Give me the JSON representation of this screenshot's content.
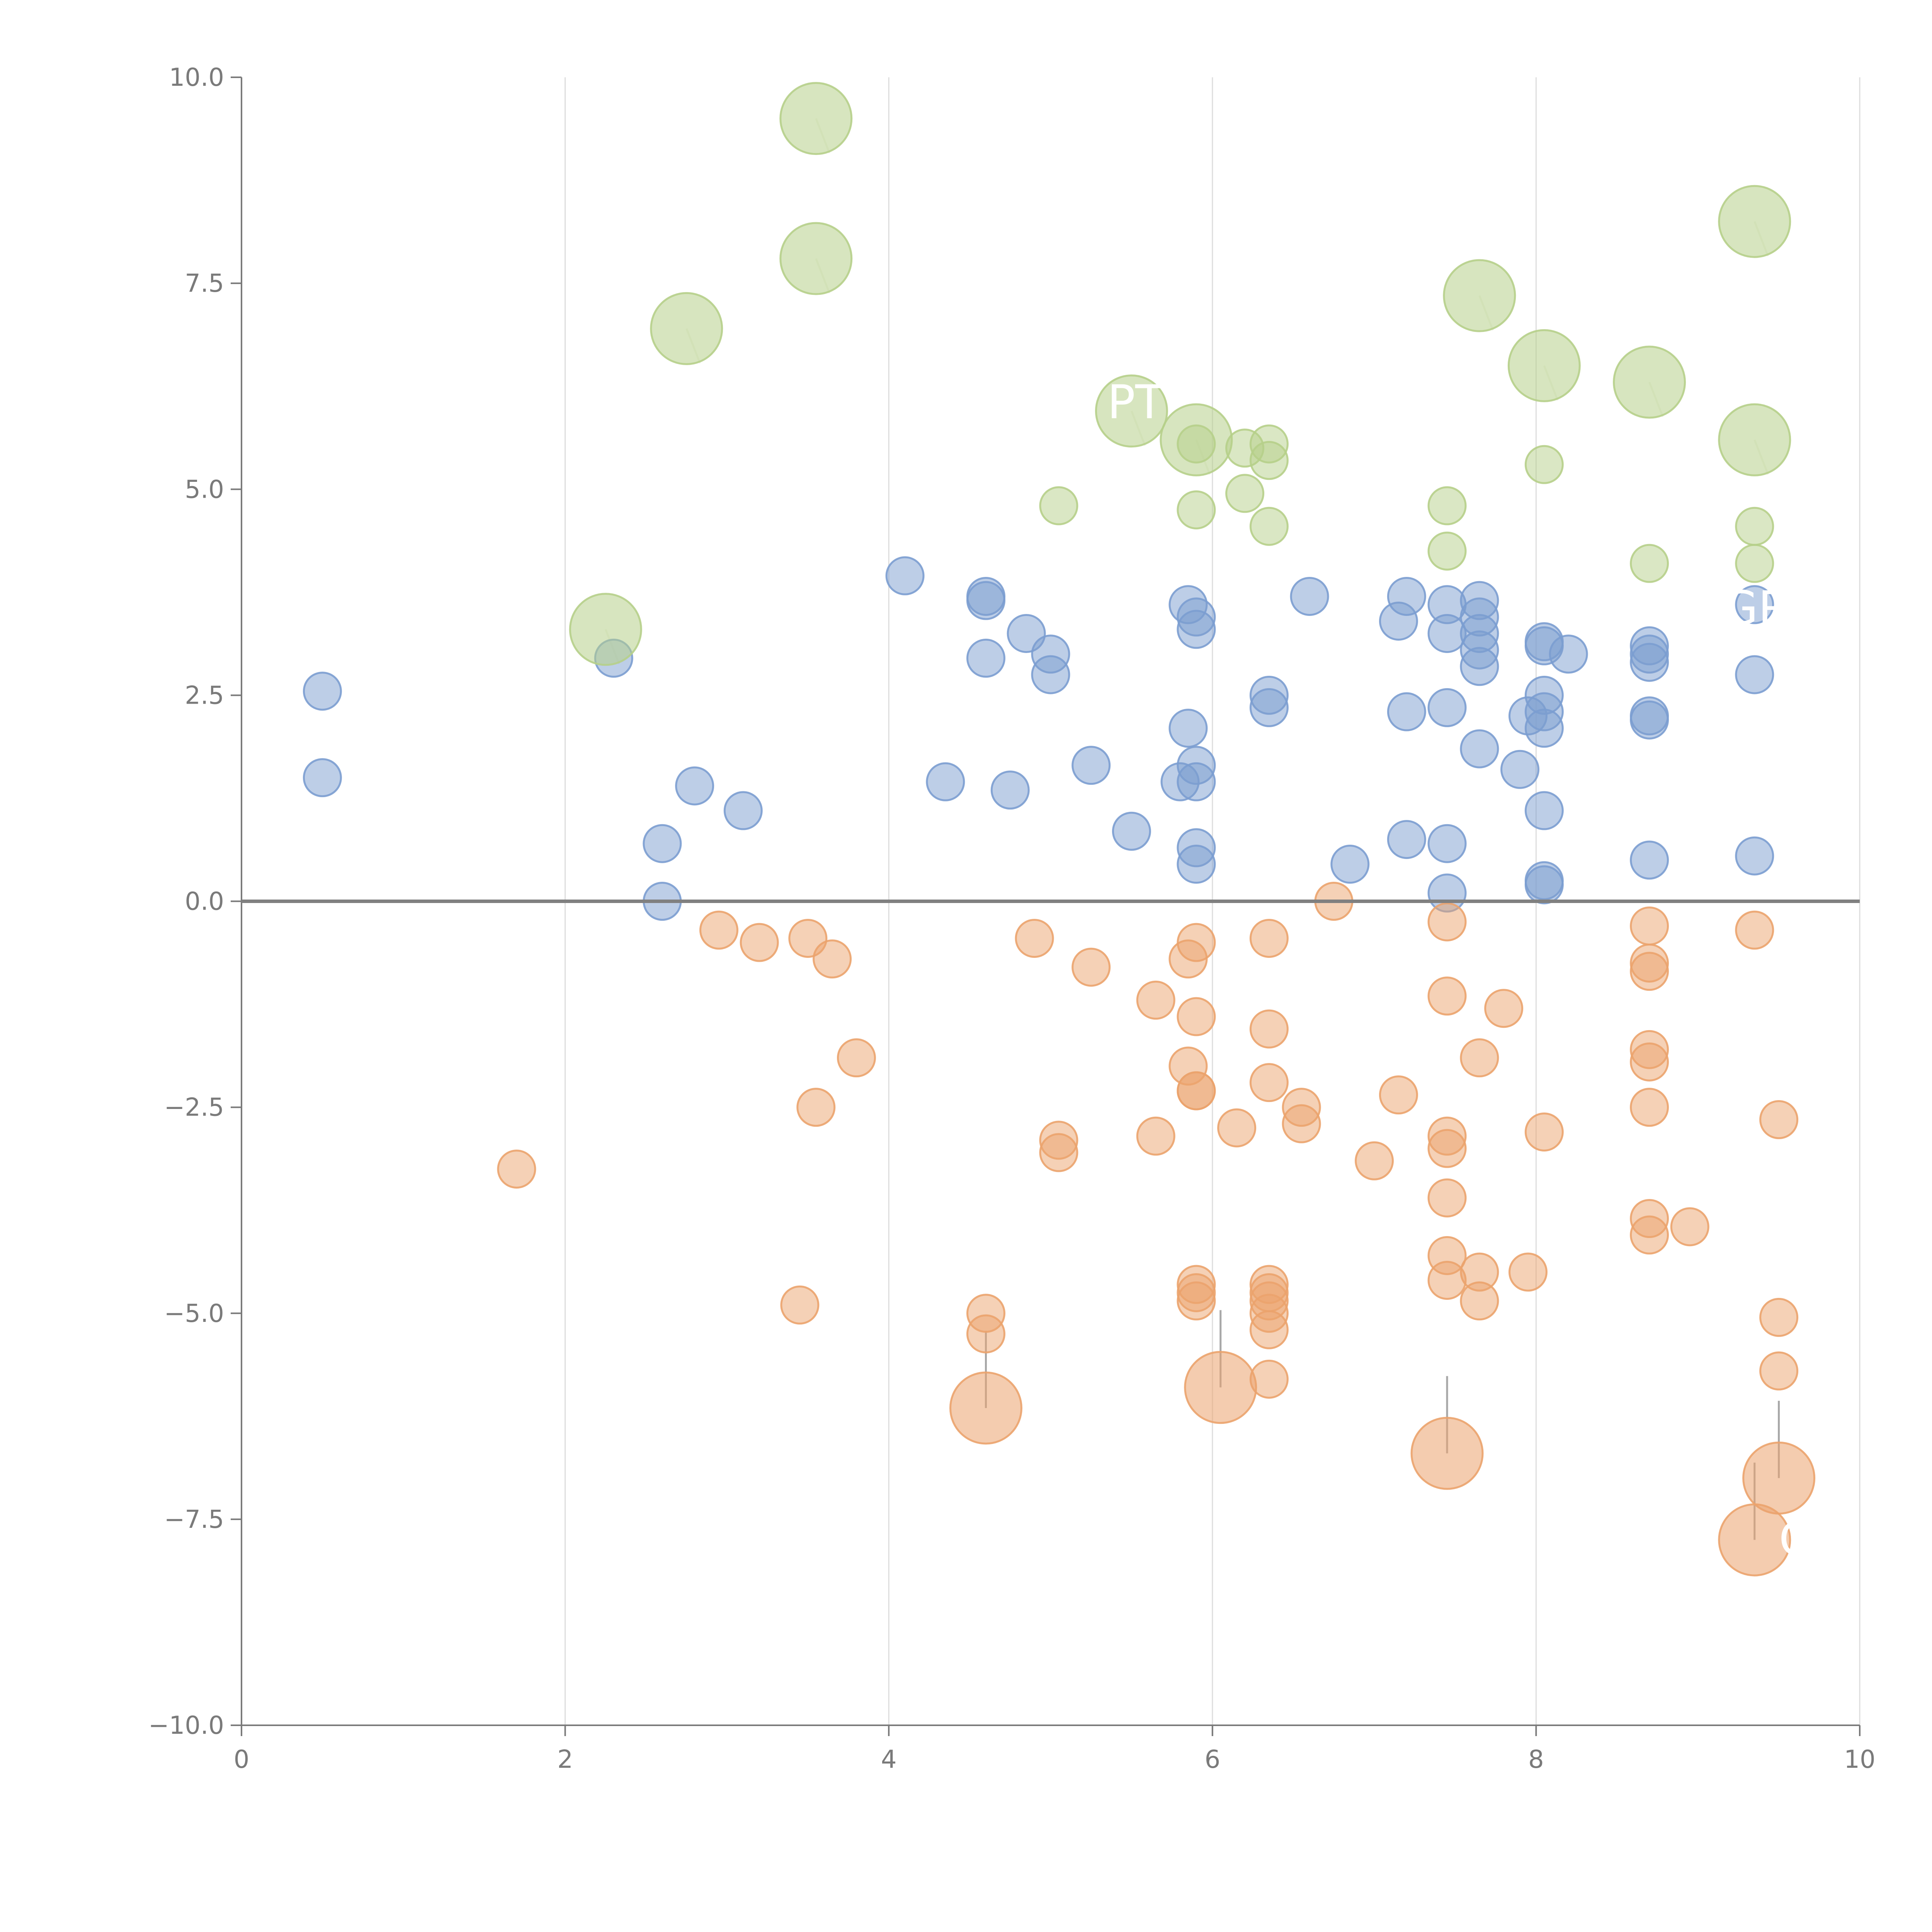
{
  "chart_data": {
    "type": "scatter",
    "title": "",
    "xlabel": "",
    "ylabel": "",
    "xlim": [
      0,
      10
    ],
    "ylim": [
      -10,
      10
    ],
    "grid": "vertical",
    "zero_line": 0,
    "x_ticks": [
      "0",
      "2",
      "4",
      "6",
      "8",
      "10"
    ],
    "y_ticks": [
      "10.0",
      "7.5",
      "5.0",
      "2.5",
      "0.0",
      "−2.5",
      "−5.0",
      "−7.5",
      "−10.0"
    ],
    "x_tick_values": [
      0,
      2,
      4,
      6,
      8,
      10
    ],
    "y_tick_values": [
      10,
      7.5,
      5,
      2.5,
      0,
      -2.5,
      -5,
      -7.5,
      -10
    ],
    "series": [
      {
        "name": "blue",
        "color": "#7b9dd0",
        "points": [
          [
            0.5,
            2.55
          ],
          [
            0.5,
            1.5
          ],
          [
            2.3,
            2.95
          ],
          [
            2.6,
            0.7
          ],
          [
            2.6,
            0.0
          ],
          [
            2.8,
            1.4
          ],
          [
            3.1,
            1.1
          ],
          [
            4.1,
            3.95
          ],
          [
            4.35,
            1.45
          ],
          [
            4.6,
            3.7
          ],
          [
            4.6,
            3.65
          ],
          [
            4.6,
            2.95
          ],
          [
            4.75,
            1.35
          ],
          [
            4.85,
            3.25
          ],
          [
            5.0,
            3.0
          ],
          [
            5.0,
            2.75
          ],
          [
            5.25,
            1.65
          ],
          [
            5.5,
            0.85
          ],
          [
            5.85,
            3.6
          ],
          [
            5.85,
            2.1
          ],
          [
            5.8,
            1.45
          ],
          [
            5.9,
            3.45
          ],
          [
            5.9,
            3.3
          ],
          [
            5.9,
            1.65
          ],
          [
            5.9,
            1.45
          ],
          [
            5.9,
            0.65
          ],
          [
            5.9,
            0.45
          ],
          [
            6.35,
            2.5
          ],
          [
            6.35,
            2.35
          ],
          [
            6.6,
            3.7
          ],
          [
            6.85,
            0.45
          ],
          [
            7.15,
            3.4
          ],
          [
            7.2,
            3.7
          ],
          [
            7.2,
            2.3
          ],
          [
            7.2,
            0.75
          ],
          [
            7.45,
            3.6
          ],
          [
            7.45,
            3.25
          ],
          [
            7.45,
            2.35
          ],
          [
            7.45,
            0.7
          ],
          [
            7.45,
            0.1
          ],
          [
            7.65,
            3.65
          ],
          [
            7.65,
            3.45
          ],
          [
            7.65,
            3.25
          ],
          [
            7.65,
            3.05
          ],
          [
            7.65,
            2.85
          ],
          [
            7.65,
            1.85
          ],
          [
            7.9,
            1.6
          ],
          [
            7.95,
            2.25
          ],
          [
            8.05,
            3.15
          ],
          [
            8.05,
            3.1
          ],
          [
            8.05,
            2.5
          ],
          [
            8.05,
            2.3
          ],
          [
            8.05,
            2.1
          ],
          [
            8.05,
            1.1
          ],
          [
            8.05,
            0.25
          ],
          [
            8.05,
            0.2
          ],
          [
            8.2,
            3.0
          ],
          [
            8.7,
            3.1
          ],
          [
            8.7,
            3.0
          ],
          [
            8.7,
            2.9
          ],
          [
            8.7,
            2.25
          ],
          [
            8.7,
            2.2
          ],
          [
            8.7,
            0.5
          ],
          [
            9.35,
            3.6
          ],
          [
            9.35,
            2.75
          ],
          [
            9.35,
            0.55
          ]
        ]
      },
      {
        "name": "orange",
        "color": "#eba36d",
        "points": [
          [
            1.7,
            -3.25
          ],
          [
            2.95,
            -0.35
          ],
          [
            3.2,
            -0.5
          ],
          [
            3.5,
            -0.45
          ],
          [
            3.65,
            -0.7
          ],
          [
            3.55,
            -2.5
          ],
          [
            3.8,
            -1.9
          ],
          [
            3.45,
            -4.9
          ],
          [
            4.6,
            -5.0
          ],
          [
            4.6,
            -5.25
          ],
          [
            4.9,
            -0.45
          ],
          [
            5.05,
            -2.9
          ],
          [
            5.05,
            -3.05
          ],
          [
            5.25,
            -0.8
          ],
          [
            5.65,
            -1.2
          ],
          [
            5.65,
            -2.85
          ],
          [
            5.85,
            -0.7
          ],
          [
            5.85,
            -2.0
          ],
          [
            5.9,
            -0.5
          ],
          [
            5.9,
            -1.4
          ],
          [
            5.9,
            -2.3
          ],
          [
            5.9,
            -2.3
          ],
          [
            5.9,
            -4.65
          ],
          [
            5.9,
            -4.75
          ],
          [
            5.9,
            -4.85
          ],
          [
            6.15,
            -2.75
          ],
          [
            6.35,
            -0.45
          ],
          [
            6.35,
            -1.55
          ],
          [
            6.35,
            -2.2
          ],
          [
            6.35,
            -4.65
          ],
          [
            6.35,
            -4.75
          ],
          [
            6.35,
            -4.85
          ],
          [
            6.35,
            -5.0
          ],
          [
            6.35,
            -5.2
          ],
          [
            6.35,
            -5.8
          ],
          [
            6.55,
            -2.5
          ],
          [
            6.55,
            -2.7
          ],
          [
            6.75,
            0.0
          ],
          [
            7.0,
            -3.15
          ],
          [
            7.15,
            -2.35
          ],
          [
            7.45,
            -0.25
          ],
          [
            7.45,
            -1.15
          ],
          [
            7.45,
            -2.85
          ],
          [
            7.45,
            -3.0
          ],
          [
            7.45,
            -3.6
          ],
          [
            7.45,
            -4.3
          ],
          [
            7.45,
            -4.6
          ],
          [
            7.65,
            -1.9
          ],
          [
            7.65,
            -4.5
          ],
          [
            7.65,
            -4.85
          ],
          [
            7.8,
            -1.3
          ],
          [
            7.95,
            -4.5
          ],
          [
            8.05,
            -2.8
          ],
          [
            8.7,
            -0.3
          ],
          [
            8.7,
            -0.75
          ],
          [
            8.7,
            -0.85
          ],
          [
            8.7,
            -1.8
          ],
          [
            8.7,
            -1.95
          ],
          [
            8.7,
            -2.5
          ],
          [
            8.7,
            -3.85
          ],
          [
            8.7,
            -4.05
          ],
          [
            8.95,
            -3.95
          ],
          [
            9.35,
            -0.35
          ],
          [
            9.5,
            -2.65
          ],
          [
            9.5,
            -5.05
          ],
          [
            9.5,
            -5.7
          ]
        ]
      },
      {
        "name": "green",
        "color": "#b6cf8a",
        "points": [
          [
            5.05,
            4.8
          ],
          [
            5.9,
            5.55
          ],
          [
            5.9,
            4.75
          ],
          [
            6.2,
            5.5
          ],
          [
            6.2,
            4.95
          ],
          [
            6.35,
            5.55
          ],
          [
            6.35,
            5.35
          ],
          [
            6.35,
            4.55
          ],
          [
            7.45,
            4.8
          ],
          [
            7.45,
            4.25
          ],
          [
            8.05,
            5.3
          ],
          [
            8.7,
            4.1
          ],
          [
            9.35,
            4.55
          ],
          [
            9.35,
            4.1
          ]
        ]
      }
    ],
    "large_points": [
      {
        "series": "green",
        "x": 3.55,
        "y": 9.5
      },
      {
        "series": "green",
        "x": 3.55,
        "y": 7.8
      },
      {
        "series": "green",
        "x": 2.75,
        "y": 6.95
      },
      {
        "series": "green",
        "x": 2.25,
        "y": 3.3
      },
      {
        "series": "green",
        "x": 5.5,
        "y": 5.95
      },
      {
        "series": "green",
        "x": 5.9,
        "y": 5.6
      },
      {
        "series": "green",
        "x": 7.65,
        "y": 7.35
      },
      {
        "series": "green",
        "x": 8.05,
        "y": 6.5
      },
      {
        "series": "green",
        "x": 8.7,
        "y": 6.3
      },
      {
        "series": "green",
        "x": 9.35,
        "y": 8.25
      },
      {
        "series": "green",
        "x": 9.35,
        "y": 5.6
      },
      {
        "series": "orange",
        "x": 4.6,
        "y": -6.15
      },
      {
        "series": "orange",
        "x": 6.05,
        "y": -5.9
      },
      {
        "series": "orange",
        "x": 7.45,
        "y": -6.7
      },
      {
        "series": "orange",
        "x": 9.5,
        "y": -7.0
      },
      {
        "series": "orange",
        "x": 9.35,
        "y": -7.75
      }
    ],
    "annotations": [
      {
        "text": "PT",
        "x": 5.35,
        "y": 6.05,
        "series": "green"
      },
      {
        "text": "GR",
        "x": 9.15,
        "y": 3.55,
        "series": "green"
      },
      {
        "text": "C",
        "x": 9.5,
        "y": -7.75,
        "series": "orange"
      }
    ]
  }
}
